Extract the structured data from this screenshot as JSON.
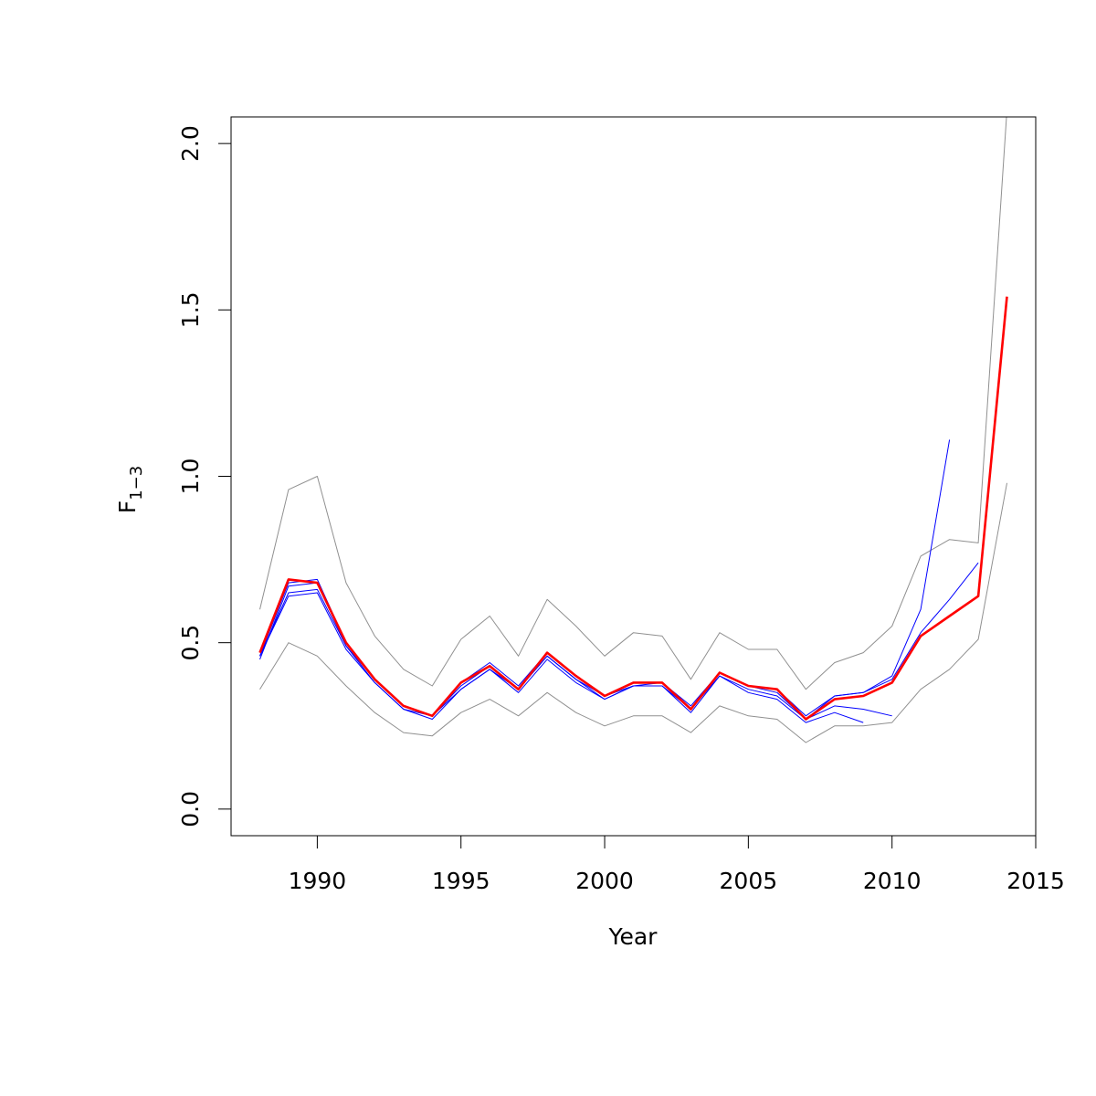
{
  "chart_data": {
    "type": "line",
    "title": "",
    "xlabel": "Year",
    "ylabel_main": "F",
    "ylabel_sub": "1−3",
    "xlim": [
      1987,
      2015
    ],
    "ylim": [
      -0.08,
      2.08
    ],
    "x_ticks": [
      1990,
      1995,
      2000,
      2005,
      2010,
      2015
    ],
    "x_tick_labels": [
      "1990",
      "1995",
      "2000",
      "2005",
      "2010",
      "2015"
    ],
    "y_ticks": [
      0.0,
      0.5,
      1.0,
      1.5,
      2.0
    ],
    "y_tick_labels": [
      "0.0",
      "0.5",
      "1.0",
      "1.5",
      "2.0"
    ],
    "grid": false,
    "legend": "none",
    "colors": {
      "main": "#ff0000",
      "retro": "#0000ff",
      "ci": "#909090"
    },
    "series": [
      {
        "role": "upper",
        "x": [
          1988,
          1989,
          1990,
          1991,
          1992,
          1993,
          1994,
          1995,
          1996,
          1997,
          1998,
          1999,
          2000,
          2001,
          2002,
          2003,
          2004,
          2005,
          2006,
          2007,
          2008,
          2009,
          2010,
          2011,
          2012,
          2013,
          2014
        ],
        "y": [
          0.6,
          0.96,
          1.0,
          0.68,
          0.52,
          0.42,
          0.37,
          0.51,
          0.58,
          0.46,
          0.63,
          0.55,
          0.46,
          0.53,
          0.52,
          0.39,
          0.53,
          0.48,
          0.48,
          0.36,
          0.44,
          0.47,
          0.55,
          0.76,
          0.81,
          0.8,
          2.1
        ]
      },
      {
        "role": "lower",
        "x": [
          1988,
          1989,
          1990,
          1991,
          1992,
          1993,
          1994,
          1995,
          1996,
          1997,
          1998,
          1999,
          2000,
          2001,
          2002,
          2003,
          2004,
          2005,
          2006,
          2007,
          2008,
          2009,
          2010,
          2011,
          2012,
          2013,
          2014
        ],
        "y": [
          0.36,
          0.5,
          0.46,
          0.37,
          0.29,
          0.23,
          0.22,
          0.29,
          0.33,
          0.28,
          0.35,
          0.29,
          0.25,
          0.28,
          0.28,
          0.23,
          0.31,
          0.28,
          0.27,
          0.2,
          0.25,
          0.25,
          0.26,
          0.36,
          0.42,
          0.51,
          0.98
        ]
      },
      {
        "role": "retro",
        "x": [
          1988,
          1989,
          1990,
          1991,
          1992,
          1993,
          1994,
          1995,
          1996,
          1997,
          1998,
          1999,
          2000,
          2001,
          2002,
          2003,
          2004,
          2005,
          2006,
          2007,
          2008,
          2009
        ],
        "y": [
          0.46,
          0.64,
          0.65,
          0.48,
          0.38,
          0.3,
          0.27,
          0.36,
          0.42,
          0.35,
          0.45,
          0.38,
          0.33,
          0.37,
          0.37,
          0.29,
          0.4,
          0.35,
          0.33,
          0.26,
          0.29,
          0.26
        ]
      },
      {
        "role": "retro",
        "x": [
          1988,
          1989,
          1990,
          1991,
          1992,
          1993,
          1994,
          1995,
          1996,
          1997,
          1998,
          1999,
          2000,
          2001,
          2002,
          2003,
          2004,
          2005,
          2006,
          2007,
          2008,
          2009,
          2010
        ],
        "y": [
          0.46,
          0.65,
          0.66,
          0.49,
          0.38,
          0.3,
          0.28,
          0.36,
          0.42,
          0.36,
          0.46,
          0.39,
          0.33,
          0.37,
          0.37,
          0.3,
          0.4,
          0.36,
          0.34,
          0.27,
          0.31,
          0.3,
          0.28
        ]
      },
      {
        "role": "retro",
        "x": [
          1988,
          1989,
          1990,
          1991,
          1992,
          1993,
          1994,
          1995,
          1996,
          1997,
          1998,
          1999,
          2000,
          2001,
          2002,
          2003,
          2004,
          2005,
          2006,
          2007,
          2008,
          2009,
          2010,
          2011,
          2012
        ],
        "y": [
          0.45,
          0.67,
          0.68,
          0.49,
          0.39,
          0.31,
          0.28,
          0.37,
          0.43,
          0.36,
          0.46,
          0.39,
          0.34,
          0.37,
          0.38,
          0.3,
          0.41,
          0.37,
          0.35,
          0.27,
          0.34,
          0.35,
          0.4,
          0.6,
          1.11
        ]
      },
      {
        "role": "retro",
        "x": [
          1988,
          1989,
          1990,
          1991,
          1992,
          1993,
          1994,
          1995,
          1996,
          1997,
          1998,
          1999,
          2000,
          2001,
          2002,
          2003,
          2004,
          2005,
          2006,
          2007,
          2008,
          2009,
          2010,
          2011,
          2012,
          2013
        ],
        "y": [
          0.46,
          0.68,
          0.69,
          0.5,
          0.39,
          0.31,
          0.28,
          0.38,
          0.44,
          0.37,
          0.47,
          0.4,
          0.34,
          0.38,
          0.38,
          0.31,
          0.41,
          0.37,
          0.36,
          0.28,
          0.34,
          0.35,
          0.39,
          0.53,
          0.63,
          0.74
        ]
      },
      {
        "role": "main",
        "x": [
          1988,
          1989,
          1990,
          1991,
          1992,
          1993,
          1994,
          1995,
          1996,
          1997,
          1998,
          1999,
          2000,
          2001,
          2002,
          2003,
          2004,
          2005,
          2006,
          2007,
          2008,
          2009,
          2010,
          2011,
          2012,
          2013,
          2014
        ],
        "y": [
          0.47,
          0.69,
          0.68,
          0.5,
          0.39,
          0.31,
          0.28,
          0.38,
          0.43,
          0.36,
          0.47,
          0.4,
          0.34,
          0.38,
          0.38,
          0.3,
          0.41,
          0.37,
          0.36,
          0.27,
          0.33,
          0.34,
          0.38,
          0.52,
          0.58,
          0.64,
          1.54
        ]
      }
    ]
  }
}
